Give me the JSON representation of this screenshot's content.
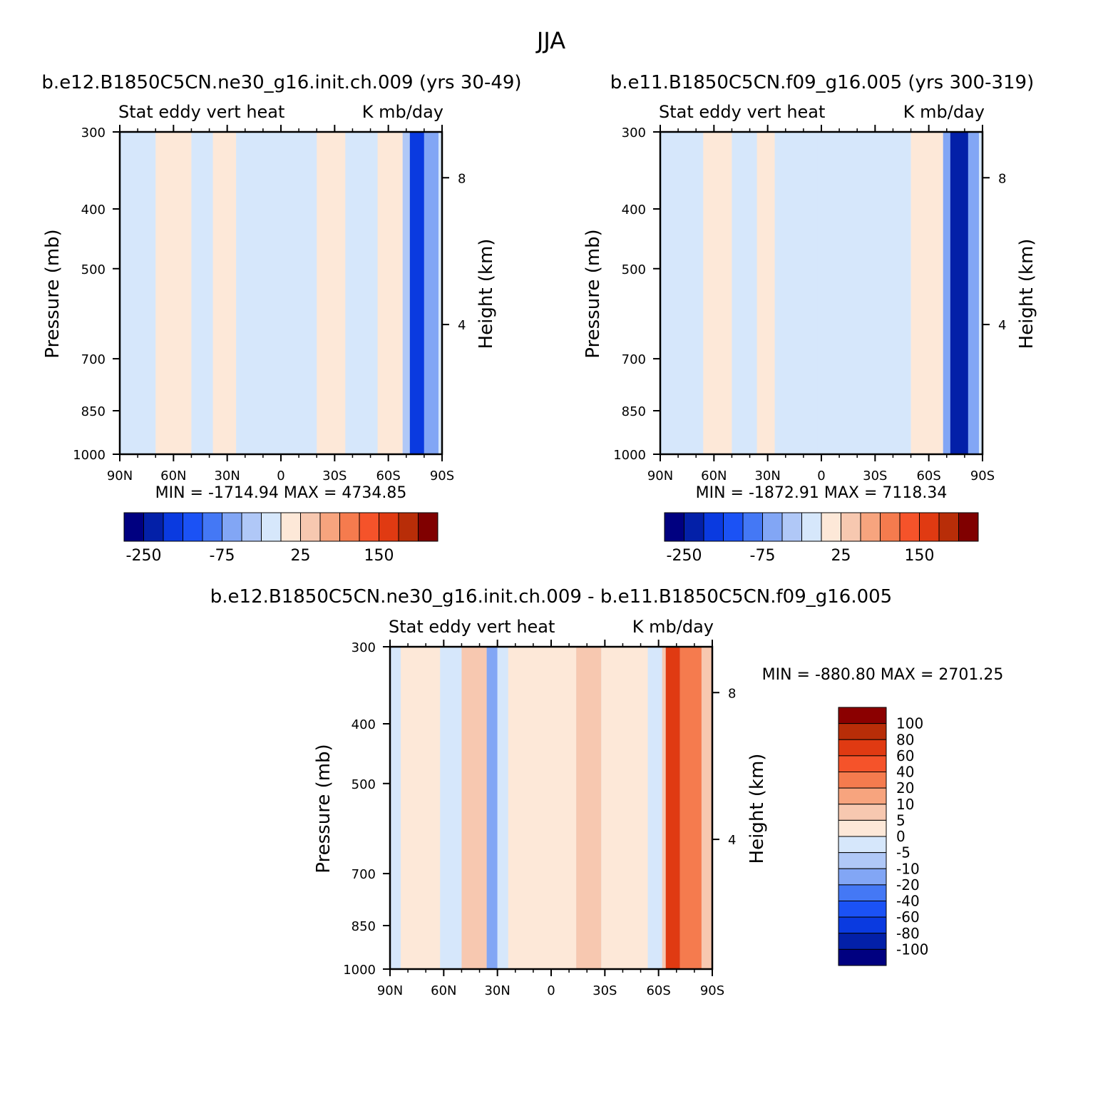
{
  "figure_title": "JJA",
  "colors": {
    "model_scale": [
      "#000080",
      "#0320a8",
      "#0a3ae0",
      "#1b52f5",
      "#4478f5",
      "#82a6f5",
      "#b0c8f7",
      "#d6e7fb",
      "#fde8d8",
      "#f7c8b0",
      "#f7a47e",
      "#f57b4e",
      "#f5532a",
      "#e03a12",
      "#b82d08",
      "#800000"
    ],
    "diff_scale": [
      "#000080",
      "#0320a8",
      "#0a3ae0",
      "#1b52f5",
      "#4478f5",
      "#82a6f5",
      "#b0c8f7",
      "#d6e7fb",
      "#fde8d8",
      "#f7c8b0",
      "#f7a47e",
      "#f57b4e",
      "#f5532a",
      "#e03a12",
      "#b82d08",
      "#8b0000"
    ]
  },
  "chart_data": [
    {
      "type": "heatmap",
      "title": "b.e12.B1850C5CN.ne30_g16.init.ch.009 (yrs 30-49)",
      "left_subtitle": "Stat eddy vert heat",
      "right_subtitle": "K mb/day",
      "ylabel": "Pressure (mb)",
      "ylabel_right": "Height (km)",
      "x_ticks": [
        "90N",
        "60N",
        "30N",
        "0",
        "30S",
        "60S",
        "90S"
      ],
      "y_ticks": [
        "300",
        "400",
        "500",
        "700",
        "850",
        "1000"
      ],
      "y_right_ticks": [
        "8",
        "4"
      ],
      "ylim": [
        1000,
        300
      ],
      "xlim": [
        "90N",
        "90S"
      ],
      "stats": "MIN = -1714.94   MAX = 4734.85",
      "colorbar_labels": [
        "-250",
        "-75",
        "25",
        "150"
      ],
      "bands": [
        {
          "x0": -90,
          "x1": -70,
          "v": -1
        },
        {
          "x0": -70,
          "x1": -50,
          "v": 1
        },
        {
          "x0": -50,
          "x1": -38,
          "v": -1
        },
        {
          "x0": -38,
          "x1": -25,
          "v": 1
        },
        {
          "x0": -25,
          "x1": 20,
          "v": -1
        },
        {
          "x0": 20,
          "x1": 36,
          "v": 1
        },
        {
          "x0": 36,
          "x1": 54,
          "v": -1
        },
        {
          "x0": 54,
          "x1": 68,
          "v": 1
        },
        {
          "x0": 68,
          "x1": 72,
          "v": -2
        },
        {
          "x0": 72,
          "x1": 80,
          "v": -6
        },
        {
          "x0": 80,
          "x1": 88,
          "v": -3
        },
        {
          "x0": 88,
          "x1": 90,
          "v": -1
        }
      ]
    },
    {
      "type": "heatmap",
      "title": "b.e11.B1850C5CN.f09_g16.005 (yrs 300-319)",
      "left_subtitle": "Stat eddy vert heat",
      "right_subtitle": "K mb/day",
      "ylabel": "Pressure (mb)",
      "ylabel_right": "Height (km)",
      "x_ticks": [
        "90N",
        "60N",
        "30N",
        "0",
        "30S",
        "60S",
        "90S"
      ],
      "y_ticks": [
        "300",
        "400",
        "500",
        "700",
        "850",
        "1000"
      ],
      "y_right_ticks": [
        "8",
        "4"
      ],
      "ylim": [
        1000,
        300
      ],
      "xlim": [
        "90N",
        "90S"
      ],
      "stats": "MIN = -1872.91   MAX = 7118.34",
      "colorbar_labels": [
        "-250",
        "-75",
        "25",
        "150"
      ],
      "bands": [
        {
          "x0": -90,
          "x1": -66,
          "v": -1
        },
        {
          "x0": -66,
          "x1": -50,
          "v": 1
        },
        {
          "x0": -50,
          "x1": -36,
          "v": -1
        },
        {
          "x0": -36,
          "x1": -26,
          "v": 1
        },
        {
          "x0": -26,
          "x1": -2,
          "v": -1
        },
        {
          "x0": -2,
          "x1": 28,
          "v": -1
        },
        {
          "x0": 28,
          "x1": 50,
          "v": -1
        },
        {
          "x0": 50,
          "x1": 68,
          "v": 1
        },
        {
          "x0": 68,
          "x1": 72,
          "v": -3
        },
        {
          "x0": 72,
          "x1": 82,
          "v": -7
        },
        {
          "x0": 82,
          "x1": 88,
          "v": -3
        },
        {
          "x0": 88,
          "x1": 90,
          "v": -1
        }
      ]
    },
    {
      "type": "heatmap",
      "title": "b.e12.B1850C5CN.ne30_g16.init.ch.009 - b.e11.B1850C5CN.f09_g16.005",
      "left_subtitle": "Stat eddy vert heat",
      "right_subtitle": "K mb/day",
      "ylabel": "Pressure (mb)",
      "ylabel_right": "Height (km)",
      "x_ticks": [
        "90N",
        "60N",
        "30N",
        "0",
        "30S",
        "60S",
        "90S"
      ],
      "y_ticks": [
        "300",
        "400",
        "500",
        "700",
        "850",
        "1000"
      ],
      "y_right_ticks": [
        "8",
        "4"
      ],
      "ylim": [
        1000,
        300
      ],
      "xlim": [
        "90N",
        "90S"
      ],
      "stats": "MIN = -880.80   MAX = 2701.25",
      "colorbar_labels": [
        "100",
        "80",
        "60",
        "40",
        "20",
        "10",
        "5",
        "0",
        "-5",
        "-10",
        "-20",
        "-40",
        "-60",
        "-80",
        "-100"
      ],
      "bands": [
        {
          "x0": -90,
          "x1": -84,
          "v": -1
        },
        {
          "x0": -84,
          "x1": -62,
          "v": 1
        },
        {
          "x0": -62,
          "x1": -50,
          "v": -1
        },
        {
          "x0": -50,
          "x1": -36,
          "v": 2
        },
        {
          "x0": -36,
          "x1": -30,
          "v": -3
        },
        {
          "x0": -30,
          "x1": -24,
          "v": -1
        },
        {
          "x0": -24,
          "x1": 14,
          "v": 1
        },
        {
          "x0": 14,
          "x1": 28,
          "v": 2
        },
        {
          "x0": 28,
          "x1": 54,
          "v": 1
        },
        {
          "x0": 54,
          "x1": 62,
          "v": -1
        },
        {
          "x0": 62,
          "x1": 64,
          "v": 2
        },
        {
          "x0": 64,
          "x1": 72,
          "v": 6
        },
        {
          "x0": 72,
          "x1": 84,
          "v": 4
        },
        {
          "x0": 84,
          "x1": 90,
          "v": 2
        }
      ]
    }
  ]
}
